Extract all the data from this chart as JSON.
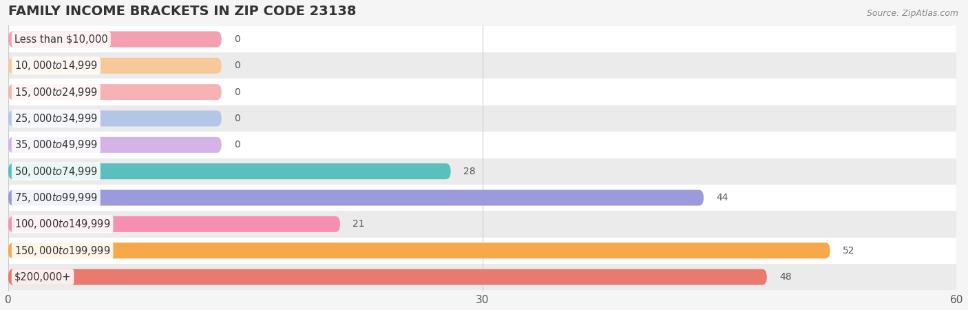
{
  "title": "FAMILY INCOME BRACKETS IN ZIP CODE 23138",
  "source": "Source: ZipAtlas.com",
  "categories": [
    "Less than $10,000",
    "$10,000 to $14,999",
    "$15,000 to $24,999",
    "$25,000 to $34,999",
    "$35,000 to $49,999",
    "$50,000 to $74,999",
    "$75,000 to $99,999",
    "$100,000 to $149,999",
    "$150,000 to $199,999",
    "$200,000+"
  ],
  "values": [
    0,
    0,
    0,
    0,
    0,
    28,
    44,
    21,
    52,
    48
  ],
  "bar_colors": [
    "#f4a0b0",
    "#f7c89a",
    "#f7b3b3",
    "#b3c6e8",
    "#d4b3e8",
    "#5bbfbf",
    "#9b9bdb",
    "#f78fb3",
    "#f7a84a",
    "#e87b6e"
  ],
  "background_color": "#f5f5f5",
  "row_bg_even": "#ffffff",
  "row_bg_odd": "#ebebeb",
  "xlim": [
    0,
    60
  ],
  "xticks": [
    0,
    30,
    60
  ],
  "title_fontsize": 14,
  "label_fontsize": 10.5,
  "tick_fontsize": 11,
  "value_fontsize": 10,
  "bar_height": 0.6,
  "zero_bar_width": 13.5
}
